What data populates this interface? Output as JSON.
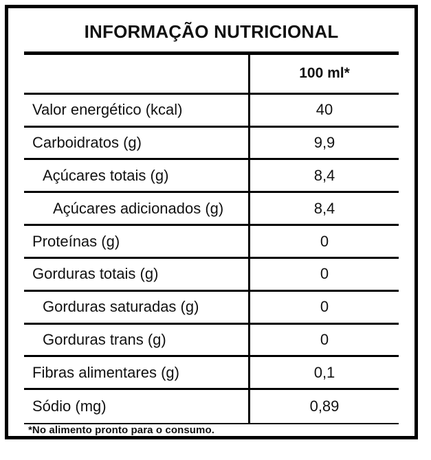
{
  "table": {
    "title": "INFORMAÇÃO NUTRICIONAL",
    "column_header": "100 ml*",
    "rows": [
      {
        "label": "Valor energético (kcal)",
        "value": "40",
        "indent": 0
      },
      {
        "label": "Carboidratos (g)",
        "value": "9,9",
        "indent": 0
      },
      {
        "label": "Açúcares totais (g)",
        "value": "8,4",
        "indent": 1
      },
      {
        "label": "Açúcares adicionados (g)",
        "value": "8,4",
        "indent": 2
      },
      {
        "label": "Proteínas (g)",
        "value": "0",
        "indent": 0
      },
      {
        "label": "Gorduras totais (g)",
        "value": "0",
        "indent": 0
      },
      {
        "label": "Gorduras saturadas (g)",
        "value": "0",
        "indent": 1
      },
      {
        "label": "Gorduras trans (g)",
        "value": "0",
        "indent": 1
      },
      {
        "label": "Fibras alimentares (g)",
        "value": "0,1",
        "indent": 0
      },
      {
        "label": "Sódio (mg)",
        "value": "0,89",
        "indent": 0
      }
    ],
    "footnote": "*No alimento pronto para o consumo.",
    "colors": {
      "border": "#000000",
      "text": "#111111",
      "background": "#ffffff"
    }
  }
}
